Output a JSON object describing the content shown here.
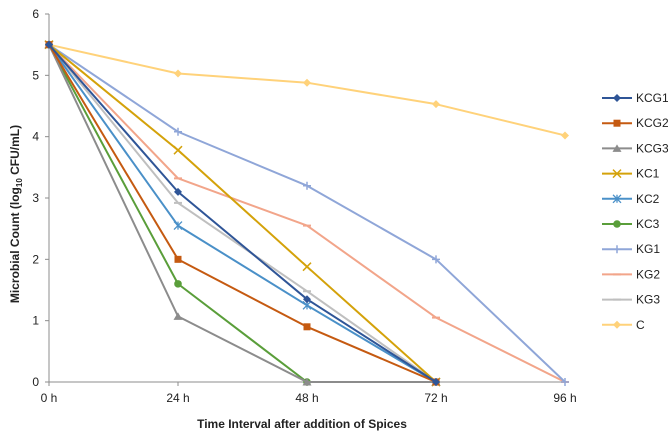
{
  "chart_data": {
    "type": "line",
    "categories": [
      "0 h",
      "24 h",
      "48 h",
      "72 h",
      "96 h"
    ],
    "ylim": [
      0,
      6
    ],
    "yticks": [
      0,
      1,
      2,
      3,
      4,
      5,
      6
    ],
    "ytick_labels": [
      "0",
      "1",
      "2",
      "3",
      "4",
      "5",
      "6"
    ],
    "xlabel": "Time Interval after addition of Spices",
    "ylabel_pre": "Microbial Count (log",
    "ylabel_sub": "10",
    "ylabel_post": " CFU/mL)",
    "legend_position": "right",
    "grid": false,
    "series": [
      {
        "name": "KCG1",
        "color": "#2f5597",
        "marker": "diamond",
        "values": [
          5.5,
          3.1,
          1.35,
          0,
          null
        ]
      },
      {
        "name": "KCG2",
        "color": "#c55a11",
        "marker": "square",
        "values": [
          5.5,
          2.0,
          0.9,
          0,
          null
        ]
      },
      {
        "name": "KCG3",
        "color": "#8c8c8c",
        "marker": "triangle",
        "values": [
          5.5,
          1.07,
          0,
          0,
          null
        ]
      },
      {
        "name": "KC1",
        "color": "#d4a20a",
        "marker": "x",
        "values": [
          5.5,
          3.78,
          1.88,
          0,
          null
        ]
      },
      {
        "name": "KC2",
        "color": "#4a90c8",
        "marker": "star",
        "values": [
          5.5,
          2.55,
          1.25,
          0,
          null
        ]
      },
      {
        "name": "KC3",
        "color": "#5a9e3a",
        "marker": "circle",
        "values": [
          5.5,
          1.6,
          0,
          0,
          null
        ]
      },
      {
        "name": "KG1",
        "color": "#8fa6d8",
        "marker": "plus",
        "values": [
          5.5,
          4.08,
          3.2,
          2.0,
          0
        ]
      },
      {
        "name": "KG2",
        "color": "#f2a58a",
        "marker": "dash",
        "values": [
          5.5,
          3.32,
          2.55,
          1.05,
          0
        ]
      },
      {
        "name": "KG3",
        "color": "#bfbfbf",
        "marker": "dash",
        "values": [
          5.5,
          2.92,
          1.48,
          0,
          null
        ]
      },
      {
        "name": "C",
        "color": "#ffd27a",
        "marker": "diamond",
        "values": [
          5.5,
          5.03,
          4.88,
          4.53,
          4.02
        ]
      }
    ]
  }
}
